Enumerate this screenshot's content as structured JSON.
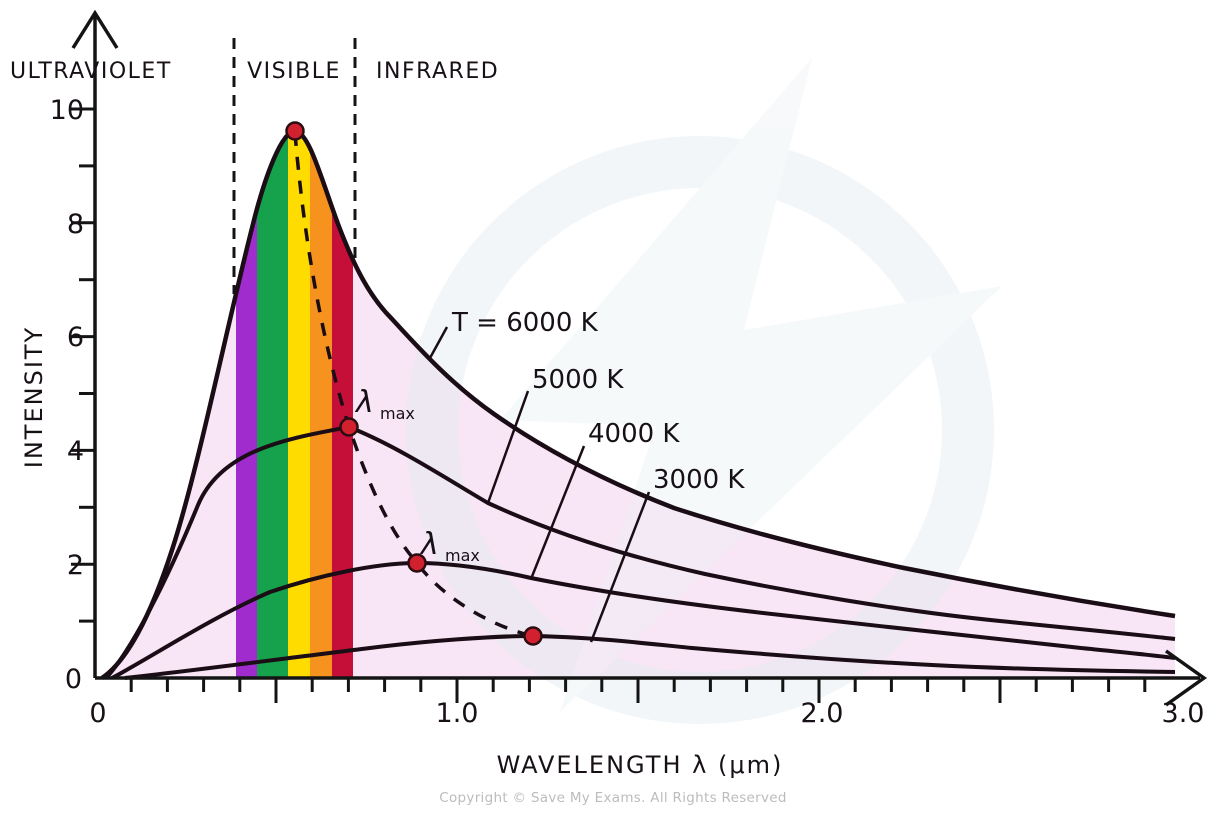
{
  "regions": {
    "ultraviolet": "ULTRAVIOLET",
    "visible": "VISIBLE",
    "infrared": "INFRARED"
  },
  "axes": {
    "y_label": "INTENSITY",
    "x_label": "WAVELENGTH  λ  (μm)",
    "y_tick_labels": [
      "10",
      "8",
      "6",
      "4",
      "2",
      "0"
    ],
    "x_tick_labels": [
      "0",
      "1.0",
      "2.0",
      "3.0"
    ]
  },
  "curve_labels": {
    "t6000": "T = 6000 K",
    "t5000": "5000 K",
    "t4000": "4000 K",
    "t3000": "3000 K"
  },
  "annotations": {
    "lambda": "λ",
    "lambda_sub": "max"
  },
  "footer": {
    "copyright": "Copyright © Save My Exams. All Rights Reserved"
  },
  "colors": {
    "fill_pink": "#f8e5f6",
    "band_violet": "#a02ccd",
    "band_green": "#16a24c",
    "band_yellow": "#ffdc00",
    "band_orange": "#f6921e",
    "band_crimson": "#c60f38",
    "curve_ink": "#1a0d16",
    "peak_dot": "#d2212e",
    "watermark": "#e7eff3"
  },
  "chart_data": {
    "type": "line",
    "title": "Black-body radiation intensity vs wavelength for different temperatures",
    "xlabel": "WAVELENGTH λ (μm)",
    "ylabel": "INTENSITY",
    "xlim": [
      0,
      3.0
    ],
    "ylim": [
      0,
      10
    ],
    "x_major_ticks": [
      0,
      1.0,
      2.0,
      3.0
    ],
    "y_major_ticks": [
      0,
      2,
      4,
      6,
      8,
      10
    ],
    "grid": false,
    "spectral_regions": {
      "ultraviolet": [
        0,
        0.4
      ],
      "visible": [
        0.4,
        0.72
      ],
      "infrared": [
        0.72,
        3.0
      ],
      "visible_band_stripes_um": {
        "violet": [
          0.39,
          0.45
        ],
        "green": [
          0.45,
          0.53
        ],
        "yellow": [
          0.53,
          0.59
        ],
        "orange": [
          0.59,
          0.655
        ],
        "red": [
          0.655,
          0.71
        ]
      }
    },
    "series": [
      {
        "name": "T = 6000 K",
        "peak": {
          "lambda_um": 0.55,
          "intensity": 9.6
        },
        "points": [
          [
            0.02,
            0
          ],
          [
            0.1,
            0.4
          ],
          [
            0.2,
            2.3
          ],
          [
            0.3,
            4.6
          ],
          [
            0.4,
            6.8
          ],
          [
            0.48,
            8.6
          ],
          [
            0.55,
            9.6
          ],
          [
            0.67,
            8.0
          ],
          [
            0.82,
            6.3
          ],
          [
            1.0,
            5.1
          ],
          [
            1.3,
            3.9
          ],
          [
            1.6,
            3.1
          ],
          [
            2.0,
            2.4
          ],
          [
            2.5,
            1.7
          ],
          [
            3.0,
            1.1
          ]
        ]
      },
      {
        "name": "5000 K",
        "peak": {
          "lambda_um": 0.7,
          "intensity": 4.4
        },
        "points": [
          [
            0.03,
            0
          ],
          [
            0.1,
            0.4
          ],
          [
            0.3,
            3.2
          ],
          [
            0.5,
            4.0
          ],
          [
            0.7,
            4.4
          ],
          [
            0.9,
            3.7
          ],
          [
            1.1,
            3.1
          ],
          [
            1.35,
            2.6
          ],
          [
            1.7,
            1.9
          ],
          [
            2.2,
            1.3
          ],
          [
            2.8,
            0.8
          ],
          [
            3.0,
            0.7
          ]
        ]
      },
      {
        "name": "4000 K",
        "peak": {
          "lambda_um": 0.89,
          "intensity": 2.0
        },
        "points": [
          [
            0.05,
            0
          ],
          [
            0.3,
            1.1
          ],
          [
            0.6,
            1.8
          ],
          [
            0.89,
            2.0
          ],
          [
            1.2,
            1.75
          ],
          [
            1.7,
            1.3
          ],
          [
            2.4,
            0.8
          ],
          [
            3.0,
            0.37
          ]
        ]
      },
      {
        "name": "3000 K",
        "peak": {
          "lambda_um": 1.21,
          "intensity": 0.74
        },
        "points": [
          [
            0.08,
            0
          ],
          [
            0.5,
            0.33
          ],
          [
            0.95,
            0.65
          ],
          [
            1.21,
            0.74
          ],
          [
            1.6,
            0.55
          ],
          [
            2.1,
            0.32
          ],
          [
            2.7,
            0.16
          ],
          [
            3.0,
            0.11
          ]
        ]
      }
    ],
    "lambda_max_locus": {
      "style": "dashed",
      "points": [
        [
          0.55,
          9.6
        ],
        [
          0.7,
          4.4
        ],
        [
          0.89,
          2.0
        ],
        [
          1.21,
          0.74
        ]
      ]
    },
    "legend_position": "inline-leader-lines"
  }
}
